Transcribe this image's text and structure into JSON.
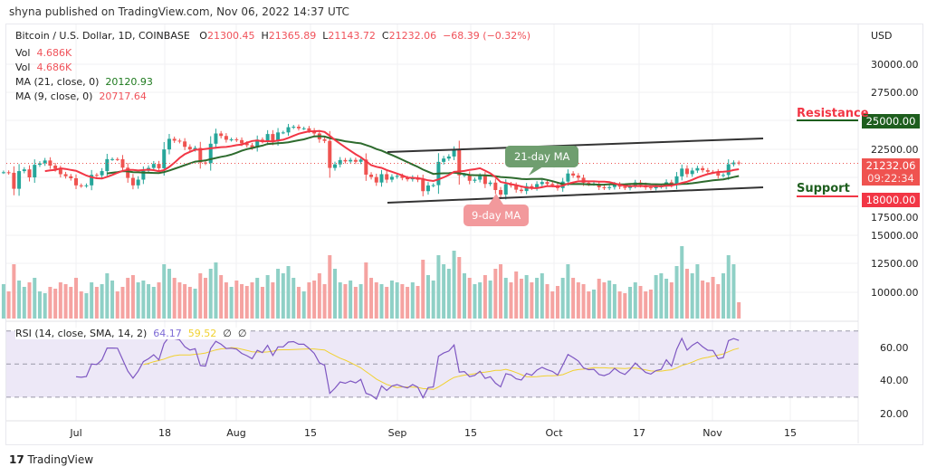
{
  "header": {
    "published": "shyna published on TradingView.com, Nov 06, 2022 14:37 UTC"
  },
  "legend": {
    "symbol": "Bitcoin / U.S. Dollar, 1D, COINBASE",
    "o_label": "O",
    "o": "21300.45",
    "h_label": "H",
    "h": "21365.89",
    "l_label": "L",
    "l": "21143.72",
    "c_label": "C",
    "c": "21232.06",
    "change": "−68.39 (−0.32%)",
    "vol1_label": "Vol",
    "vol1": "4.686K",
    "vol2_label": "Vol",
    "vol2": "4.686K",
    "ma21_label": "MA (21, close, 0)",
    "ma21": "20120.93",
    "ma9_label": "MA (9, close, 0)",
    "ma9": "20717.64",
    "rsi_label": "RSI (14, close, SMA, 14, 2)",
    "rsi": "64.17",
    "rsi_sma": "59.52",
    "rsi_extra1": "∅",
    "rsi_extra2": "∅"
  },
  "annotations": {
    "resistance": "Resistance",
    "resistance_price": "25000.00",
    "support": "Support",
    "support_price": "18000.00",
    "ma21_callout": "21-day MA",
    "ma9_callout": "9-day MA",
    "last_price": "21232.06",
    "countdown": "09:22:34"
  },
  "colors": {
    "up": "#26a69a",
    "down": "#ef5350",
    "ma21": "#2e6b2e",
    "ma9": "#f23645",
    "rsi": "#7e57c2",
    "rsi_sma": "#f1d130",
    "resistance": "#1e5e1e",
    "support": "#f23645"
  },
  "footer": {
    "logo": "TradingView"
  },
  "chart_data": {
    "type": "candlestick",
    "currency_label": "USD",
    "price_ticks": [
      "30000.00",
      "27500.00",
      "22500.00",
      "17500.00",
      "15000.00",
      "12500.00",
      "10000.00"
    ],
    "rsi_ticks": [
      "60.00",
      "40.00",
      "20.00"
    ],
    "x_ticks": [
      "Jul",
      "18",
      "Aug",
      "15",
      "Sep",
      "15",
      "Oct",
      "17",
      "Nov",
      "15"
    ],
    "start_date": "2022-06-17",
    "closes": [
      20450,
      20400,
      19000,
      20550,
      20700,
      20000,
      21100,
      21230,
      21480,
      21030,
      20740,
      20280,
      20100,
      19920,
      19300,
      19250,
      19300,
      20220,
      20180,
      20550,
      21600,
      21600,
      21590,
      20850,
      19950,
      19300,
      19800,
      20580,
      20830,
      21180,
      20800,
      22450,
      23380,
      23220,
      23150,
      22680,
      22450,
      22580,
      21300,
      21250,
      22950,
      23850,
      23630,
      23300,
      23330,
      23270,
      22980,
      22820,
      22620,
      23310,
      23170,
      23800,
      23160,
      23940,
      23940,
      24400,
      24440,
      24300,
      24300,
      24100,
      23850,
      23340,
      23200,
      20830,
      21140,
      21520,
      21400,
      21530,
      21370,
      21560,
      20240,
      20030,
      19550,
      20280,
      19800,
      20050,
      20130,
      19950,
      19830,
      19990,
      19790,
      18790,
      19290,
      19320,
      21360,
      21650,
      21830,
      22400,
      20180,
      20220,
      19700,
      19800,
      20110,
      19420,
      19540,
      18890,
      18490,
      19410,
      19290,
      18920,
      18800,
      19230,
      19080,
      19410,
      19590,
      19420,
      19310,
      19060,
      19630,
      20340,
      20160,
      19960,
      19530,
      19420,
      19440,
      19130,
      19060,
      19150,
      19380,
      19180,
      19070,
      19270,
      19550,
      19330,
      19120,
      19040,
      19170,
      19210,
      19570,
      19330,
      20090,
      20770,
      20290,
      20600,
      20810,
      20630,
      20490,
      20480,
      20150,
      20210,
      21150,
      21300,
      21232.06
    ],
    "volumes_k": [
      38,
      30,
      60,
      42,
      35,
      40,
      45,
      30,
      28,
      35,
      33,
      40,
      38,
      35,
      45,
      30,
      28,
      40,
      35,
      38,
      50,
      42,
      30,
      35,
      45,
      48,
      40,
      42,
      38,
      35,
      40,
      60,
      55,
      45,
      40,
      38,
      35,
      33,
      50,
      45,
      55,
      62,
      48,
      40,
      35,
      42,
      38,
      36,
      40,
      45,
      35,
      48,
      40,
      55,
      50,
      58,
      45,
      35,
      30,
      40,
      42,
      50,
      38,
      70,
      55,
      40,
      38,
      42,
      35,
      38,
      62,
      45,
      40,
      38,
      35,
      42,
      40,
      38,
      35,
      40,
      36,
      65,
      48,
      42,
      70,
      60,
      55,
      75,
      68,
      50,
      45,
      38,
      40,
      48,
      42,
      55,
      60,
      45,
      40,
      52,
      44,
      48,
      40,
      45,
      50,
      38,
      30,
      36,
      45,
      60,
      45,
      40,
      38,
      30,
      32,
      44,
      40,
      42,
      38,
      30,
      28,
      35,
      40,
      36,
      30,
      32,
      48,
      50,
      44,
      40,
      58,
      80,
      55,
      50,
      60,
      42,
      40,
      46,
      38,
      50,
      70,
      60,
      18
    ]
  }
}
